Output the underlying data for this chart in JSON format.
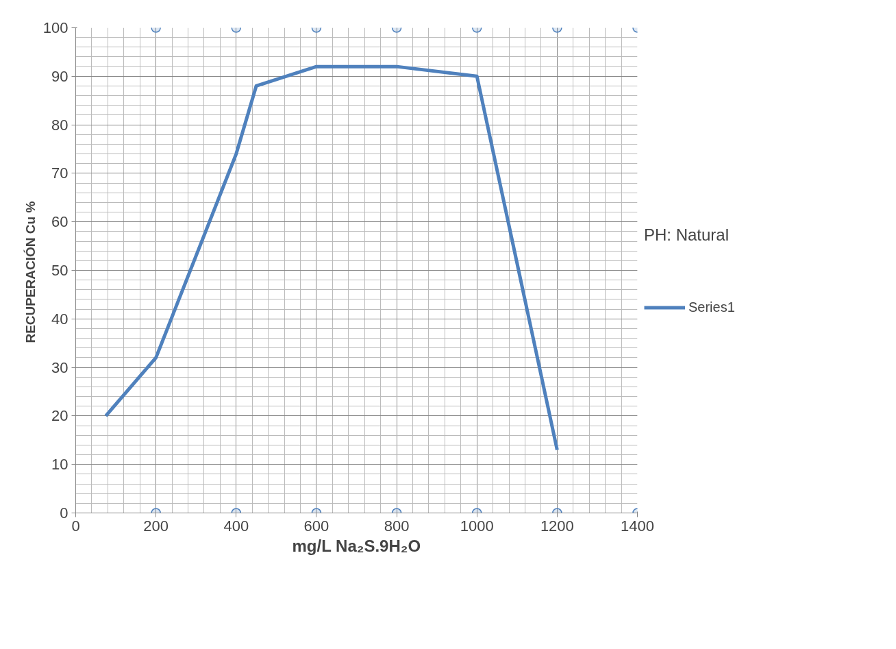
{
  "chart_data": {
    "type": "line",
    "xlabel": "mg/L Na₂S.9H₂O",
    "ylabel": "RECUPERACIÓN  Cu %",
    "annotations": [
      "PH: Natural"
    ],
    "xlim": [
      0,
      1400
    ],
    "xticks": [
      0,
      200,
      400,
      600,
      800,
      1000,
      1200,
      1400
    ],
    "ylim": [
      0,
      100
    ],
    "yticks": [
      0,
      10,
      20,
      30,
      40,
      50,
      60,
      70,
      80,
      90,
      100
    ],
    "grid": true,
    "legend": "right",
    "series": [
      {
        "name": "Series1",
        "color": "#4f81bd",
        "x": [
          75,
          200,
          400,
          450,
          600,
          800,
          1000,
          1200
        ],
        "values": [
          20,
          32,
          74,
          88,
          92,
          92,
          90,
          13
        ]
      },
      {
        "type": "scatter",
        "marker": "circle",
        "color": "#4f81bd",
        "x": [
          200,
          400,
          600,
          800,
          1000,
          1200,
          1400
        ],
        "values": [
          100,
          100,
          100,
          100,
          100,
          100,
          100
        ]
      },
      {
        "type": "scatter",
        "marker": "circle",
        "color": "#4f81bd",
        "x": [
          200,
          400,
          600,
          800,
          1000,
          1200,
          1400
        ],
        "values": [
          0,
          0,
          0,
          0,
          0,
          0,
          0
        ]
      }
    ]
  }
}
